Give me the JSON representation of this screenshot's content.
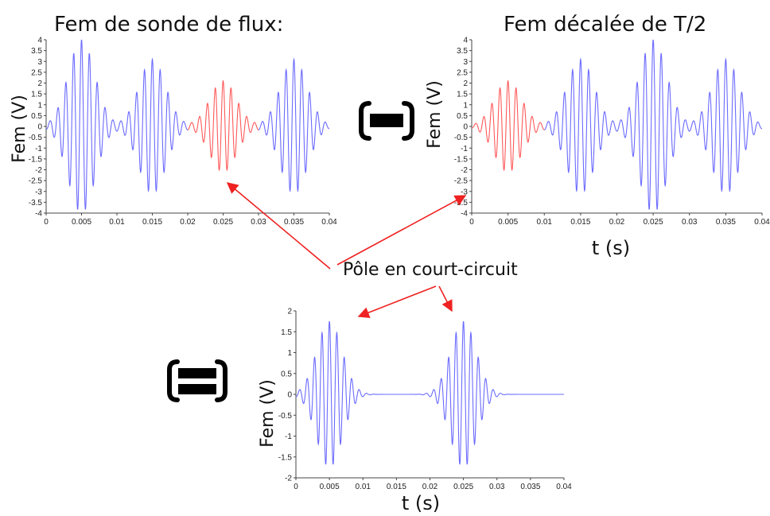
{
  "chart_data": [
    {
      "type": "line",
      "title": "Fem de sonde de flux:",
      "xlabel": "",
      "ylabel": "Fem (V)",
      "xlim": [
        0,
        0.04
      ],
      "ylim": [
        -4,
        4
      ],
      "x_ticks": [
        "0",
        "0.005",
        "0.01",
        "0.015",
        "0.02",
        "0.025",
        "0.03",
        "0.035",
        "0.04"
      ],
      "y_ticks": [
        "-4",
        "-3.5",
        "-3",
        "-2.5",
        "-2",
        "-1.5",
        "-1",
        "-0.5",
        "0",
        "0.5",
        "1",
        "1.5",
        "2",
        "2.5",
        "3",
        "3.5",
        "4"
      ],
      "grid": false,
      "series": [
        {
          "color": "#6b6bff",
          "x_range": [
            0,
            0.02
          ],
          "envelope_peaks": [
            {
              "x": 0.005,
              "y": 4
            },
            {
              "x": 0.015,
              "y": 3.1
            }
          ]
        },
        {
          "color": "#ff5a5a",
          "x_range": [
            0.02,
            0.03
          ],
          "envelope_peaks": [
            {
              "x": 0.025,
              "y": 2.1
            }
          ]
        },
        {
          "color": "#6b6bff",
          "x_range": [
            0.03,
            0.04
          ],
          "envelope_peaks": [
            {
              "x": 0.035,
              "y": 3.1
            }
          ]
        }
      ]
    },
    {
      "type": "line",
      "title": "Fem décalée de T/2",
      "xlabel": "t (s)",
      "ylabel": "Fem (V)",
      "xlim": [
        0,
        0.04
      ],
      "ylim": [
        -4,
        4
      ],
      "x_ticks": [
        "0",
        "0.005",
        "0.01",
        "0.015",
        "0.02",
        "0.025",
        "0.03",
        "0.035",
        "0.04"
      ],
      "y_ticks": [
        "-4",
        "-3.5",
        "-3",
        "-2.5",
        "-2",
        "-1.5",
        "-1",
        "-0.5",
        "0",
        "0.5",
        "1",
        "1.5",
        "2",
        "2.5",
        "3",
        "3.5",
        "4"
      ],
      "grid": false,
      "series": [
        {
          "color": "#ff5a5a",
          "x_range": [
            0,
            0.01
          ],
          "envelope_peaks": [
            {
              "x": 0.005,
              "y": 2.1
            }
          ]
        },
        {
          "color": "#6b6bff",
          "x_range": [
            0.01,
            0.04
          ],
          "envelope_peaks": [
            {
              "x": 0.015,
              "y": 3.1
            },
            {
              "x": 0.025,
              "y": 4
            },
            {
              "x": 0.035,
              "y": 3.1
            }
          ]
        }
      ]
    },
    {
      "type": "line",
      "title": "",
      "xlabel": "t (s)",
      "ylabel": "Fem (V)",
      "xlim": [
        0,
        0.04
      ],
      "ylim": [
        -2,
        2
      ],
      "x_ticks": [
        "0",
        "0.005",
        "0.01",
        "0.015",
        "0.02",
        "0.025",
        "0.03",
        "0.035",
        "0.04"
      ],
      "y_ticks": [
        "-2",
        "-1.5",
        "-1",
        "-0.5",
        "0",
        "0.5",
        "1",
        "1.5",
        "2"
      ],
      "grid": false,
      "series": [
        {
          "color": "#6b6bff",
          "x_range": [
            0,
            0.04
          ],
          "envelope_peaks": [
            {
              "x": 0.005,
              "y": 1.75
            },
            {
              "x": 0.025,
              "y": 1.75
            }
          ]
        }
      ]
    }
  ],
  "annotation": {
    "label": "Pôle en court-circuit",
    "color": "#ee2222"
  },
  "operators": {
    "minus": "minus",
    "equals": "equals"
  }
}
